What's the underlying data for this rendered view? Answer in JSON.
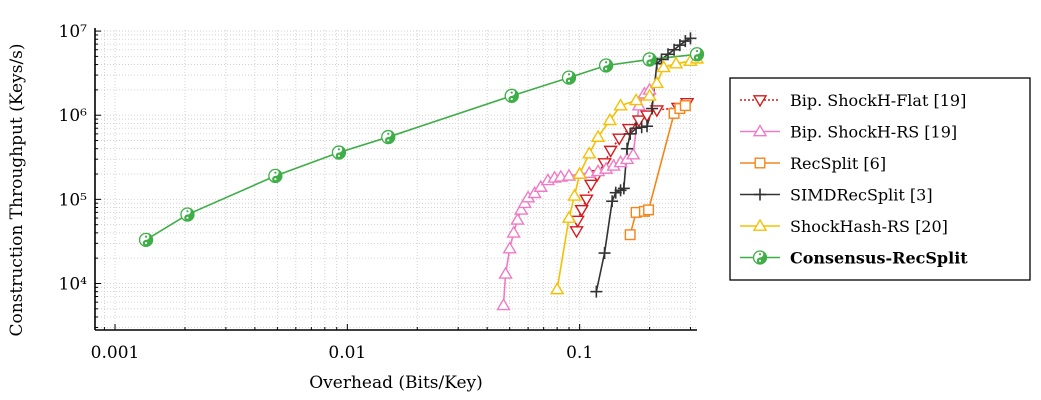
{
  "chart_data": {
    "type": "line",
    "xscale": "log",
    "yscale": "log",
    "xlim": [
      0.00082,
      0.32
    ],
    "ylim": [
      2800,
      10300000
    ],
    "xlabel": "Overhead (Bits/Key)",
    "ylabel": "Construction Throughput (Keys/s)",
    "grid": true,
    "legend_position": "right",
    "x_ticks": [
      {
        "value": 0.001,
        "label": "0.001"
      },
      {
        "value": 0.01,
        "label": "0.01"
      },
      {
        "value": 0.1,
        "label": "0.1"
      }
    ],
    "y_ticks": [
      {
        "value": 10000,
        "label": "10⁴"
      },
      {
        "value": 100000,
        "label": "10⁵"
      },
      {
        "value": 1000000,
        "label": "10⁶"
      },
      {
        "value": 10000000,
        "label": "10⁷"
      }
    ],
    "series": [
      {
        "name": "Bip. ShockH-Flat [19]",
        "color": "#d7191c",
        "marker": "triangle-down",
        "dash": true,
        "x": [
          0.097,
          0.098,
          0.102,
          0.107,
          0.112,
          0.119,
          0.128,
          0.136,
          0.148,
          0.163,
          0.18,
          0.195,
          0.215,
          0.265,
          0.29
        ],
        "y": [
          42000,
          56000,
          75000,
          100000,
          150000,
          195000,
          270000,
          380000,
          530000,
          690000,
          870000,
          1000000,
          1150000,
          1230000,
          1400000
        ]
      },
      {
        "name": "Bip. ShockH-RS [19]",
        "color": "#f07bc4",
        "marker": "triangle-up",
        "dash": false,
        "x": [
          0.047,
          0.048,
          0.05,
          0.052,
          0.054,
          0.056,
          0.058,
          0.06,
          0.064,
          0.068,
          0.073,
          0.078,
          0.083,
          0.09,
          0.1,
          0.11,
          0.12,
          0.13,
          0.14,
          0.15,
          0.16,
          0.17,
          0.18,
          0.19,
          0.2
        ],
        "y": [
          5500,
          13000,
          26000,
          40000,
          57000,
          75000,
          90000,
          105000,
          118000,
          140000,
          168000,
          180000,
          185000,
          190000,
          200000,
          205000,
          215000,
          230000,
          250000,
          275000,
          300000,
          340000,
          1300000,
          1800000,
          2000000
        ]
      },
      {
        "name": "RecSplit [6]",
        "color": "#f58518",
        "marker": "square",
        "dash": false,
        "x": [
          0.165,
          0.175,
          0.19,
          0.198,
          0.255,
          0.27,
          0.285
        ],
        "y": [
          38000,
          70000,
          72000,
          75000,
          1050000,
          1200000,
          1300000
        ]
      },
      {
        "name": "SIMDRecSplit [3]",
        "color": "#333333",
        "marker": "plus",
        "dash": false,
        "x": [
          0.118,
          0.128,
          0.138,
          0.143,
          0.15,
          0.155,
          0.16,
          0.165,
          0.175,
          0.185,
          0.195,
          0.205,
          0.215,
          0.225,
          0.24,
          0.255,
          0.27,
          0.285,
          0.3
        ],
        "y": [
          8000,
          23000,
          95000,
          120000,
          128000,
          135000,
          400000,
          600000,
          700000,
          720000,
          740000,
          1200000,
          4100000,
          4600000,
          5300000,
          6000000,
          6800000,
          7600000,
          8200000
        ]
      },
      {
        "name": "ShockHash-RS [20]",
        "color": "#f5c000",
        "marker": "triangle-up",
        "dash": false,
        "x": [
          0.08,
          0.09,
          0.095,
          0.1,
          0.11,
          0.12,
          0.135,
          0.15,
          0.175,
          0.2,
          0.215,
          0.23,
          0.26,
          0.3,
          0.32
        ],
        "y": [
          8500,
          60000,
          110000,
          200000,
          350000,
          550000,
          870000,
          1300000,
          1500000,
          1700000,
          2400000,
          3700000,
          4100000,
          4400000,
          4700000
        ]
      },
      {
        "name": "Consensus-RecSplit",
        "color": "#3eae46",
        "marker": "yin-yang",
        "dash": false,
        "x": [
          0.00136,
          0.00205,
          0.0049,
          0.0092,
          0.015,
          0.051,
          0.09,
          0.13,
          0.2,
          0.32
        ],
        "y": [
          33000,
          66000,
          190000,
          360000,
          550000,
          1700000,
          2800000,
          3900000,
          4600000,
          5300000
        ]
      }
    ]
  },
  "legend": {
    "items": [
      {
        "label": "Bip. ShockH-Flat [19]"
      },
      {
        "label": "Bip. ShockH-RS [19]"
      },
      {
        "label": "RecSplit [6]"
      },
      {
        "label": "SIMDRecSplit [3]"
      },
      {
        "label": "ShockHash-RS [20]"
      },
      {
        "label": "Consensus-RecSplit"
      }
    ]
  }
}
